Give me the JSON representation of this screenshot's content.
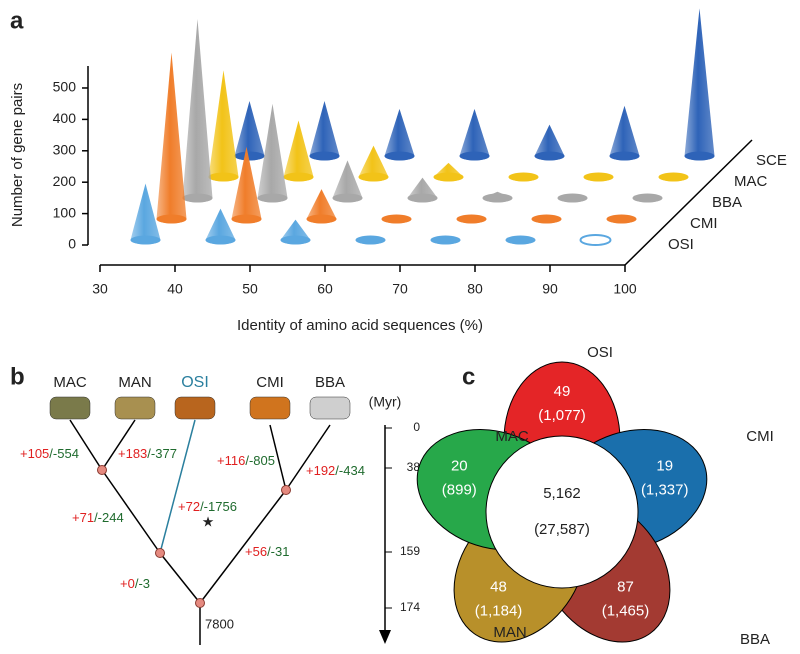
{
  "panels": [
    "a",
    "b",
    "c"
  ],
  "chart_data": {
    "type": "cone3d",
    "xlabel": "Identity of amino acid sequences (%)",
    "ylabel": "Number of gene pairs",
    "x": [
      35,
      45,
      55,
      65,
      75,
      85,
      95
    ],
    "xlim": [
      30,
      100
    ],
    "xticks": [
      30,
      40,
      50,
      60,
      70,
      80,
      90,
      100
    ],
    "ylim": [
      0,
      570
    ],
    "yticks": [
      0,
      100,
      200,
      300,
      400,
      500
    ],
    "series": [
      {
        "name": "OSI",
        "color": "#5aa7e0",
        "values": [
          180,
          100,
          65,
          5,
          3,
          2,
          0
        ]
      },
      {
        "name": "CMI",
        "color": "#f07d2a",
        "values": [
          530,
          230,
          95,
          8,
          5,
          3,
          3
        ]
      },
      {
        "name": "BBA",
        "color": "#a8a8a8",
        "values": [
          570,
          300,
          120,
          65,
          20,
          5,
          5
        ]
      },
      {
        "name": "MAC",
        "color": "#f2c318",
        "values": [
          340,
          180,
          100,
          45,
          5,
          5,
          5
        ]
      },
      {
        "name": "SCE",
        "color": "#2e63b8",
        "values": [
          175,
          175,
          150,
          150,
          100,
          160,
          470
        ]
      }
    ]
  },
  "tree": {
    "taxa": [
      "MAC",
      "MAN",
      "OSI",
      "CMI",
      "BBA"
    ],
    "branches": [
      {
        "gain": "+105",
        "loss": "/-554"
      },
      {
        "gain": "+183",
        "loss": "/-377"
      },
      {
        "gain": "+71",
        "loss": "/-244"
      },
      {
        "gain": "+72",
        "loss": "/-1756"
      },
      {
        "gain": "+116",
        "loss": "/-805"
      },
      {
        "gain": "+192",
        "loss": "/-434"
      },
      {
        "gain": "+56",
        "loss": "/-31"
      },
      {
        "gain": "+0",
        "loss": "/-3"
      }
    ],
    "root": "7800",
    "time_unit": "(Myr)",
    "times": [
      0,
      38,
      159,
      174
    ]
  },
  "venn": {
    "petals": [
      {
        "name": "OSI",
        "count": "49",
        "total": "(1,077)",
        "color": "#e42527"
      },
      {
        "name": "CMI",
        "count": "19",
        "total": "(1,337)",
        "color": "#1a6fac"
      },
      {
        "name": "BBA",
        "count": "87",
        "total": "(1,465)",
        "color": "#a33a32"
      },
      {
        "name": "MAN",
        "count": "48",
        "total": "(1,184)",
        "color": "#b8902a"
      },
      {
        "name": "MAC",
        "count": "20",
        "total": "(899)",
        "color": "#27a84a"
      }
    ],
    "core": {
      "count": "5,162",
      "total": "(27,587)"
    }
  }
}
